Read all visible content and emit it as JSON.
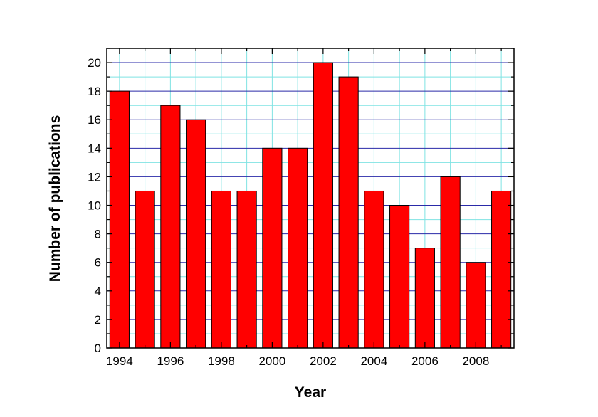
{
  "chart_data": {
    "type": "bar",
    "title": "",
    "xlabel": "Year",
    "ylabel": "Number of publications",
    "categories": [
      "1994",
      "1995",
      "1996",
      "1997",
      "1998",
      "1999",
      "2000",
      "2001",
      "2002",
      "2003",
      "2004",
      "2005",
      "2006",
      "2007",
      "2008",
      "2009"
    ],
    "values": [
      18,
      11,
      17,
      16,
      11,
      11,
      14,
      14,
      20,
      19,
      11,
      10,
      7,
      12,
      6,
      11
    ],
    "x_tick_labels": [
      "1994",
      "1996",
      "1998",
      "2000",
      "2002",
      "2004",
      "2006",
      "2008"
    ],
    "y_tick_labels": [
      "0",
      "2",
      "4",
      "6",
      "8",
      "10",
      "12",
      "14",
      "16",
      "18",
      "20"
    ],
    "ylim": [
      0,
      21
    ],
    "xlim": [
      1993.5,
      2009.5
    ],
    "grid": true,
    "legend": "none",
    "colors": {
      "bar": "#ff0000",
      "bar_edge": "#000000",
      "major_grid": "#2a2aa8",
      "minor_grid": "#7fe3e3",
      "axis": "#000000"
    }
  }
}
